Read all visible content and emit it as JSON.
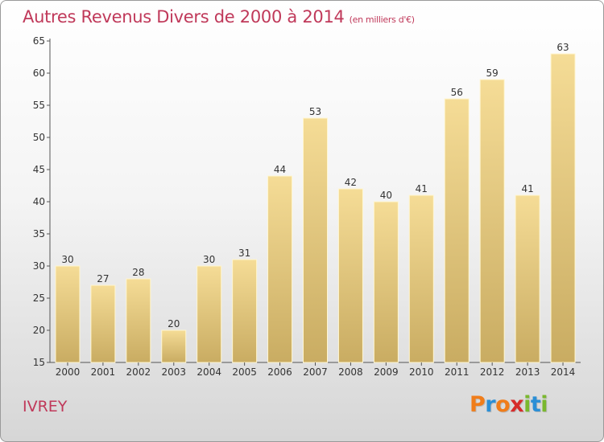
{
  "header": {
    "title": "Autres Revenus Divers de 2000 à 2014",
    "subtitle": "(en milliers d'€)"
  },
  "footer": {
    "city": "IVREY",
    "logo_text": "Proxiti"
  },
  "colors": {
    "title": "#c0395a",
    "bar_light": "#f5dc96",
    "bar_dark": "#c9ac62",
    "logo": [
      "#f07d1a",
      "#2b8fd6",
      "#f07d1a",
      "#d62b2b",
      "#7ab82e",
      "#2b8fd6",
      "#7ab82e"
    ]
  },
  "chart_data": {
    "type": "bar",
    "title": "Autres Revenus Divers de 2000 à 2014",
    "subtitle": "(en milliers d'€)",
    "categories": [
      "2000",
      "2001",
      "2002",
      "2003",
      "2004",
      "2005",
      "2006",
      "2007",
      "2008",
      "2009",
      "2010",
      "2011",
      "2012",
      "2013",
      "2014"
    ],
    "values": [
      30,
      27,
      28,
      20,
      30,
      31,
      44,
      53,
      42,
      40,
      41,
      56,
      59,
      41,
      63
    ],
    "ylim": [
      15,
      65
    ],
    "yticks": [
      15,
      20,
      25,
      30,
      35,
      40,
      45,
      50,
      55,
      60,
      65
    ],
    "grid": false,
    "legend": "none"
  }
}
